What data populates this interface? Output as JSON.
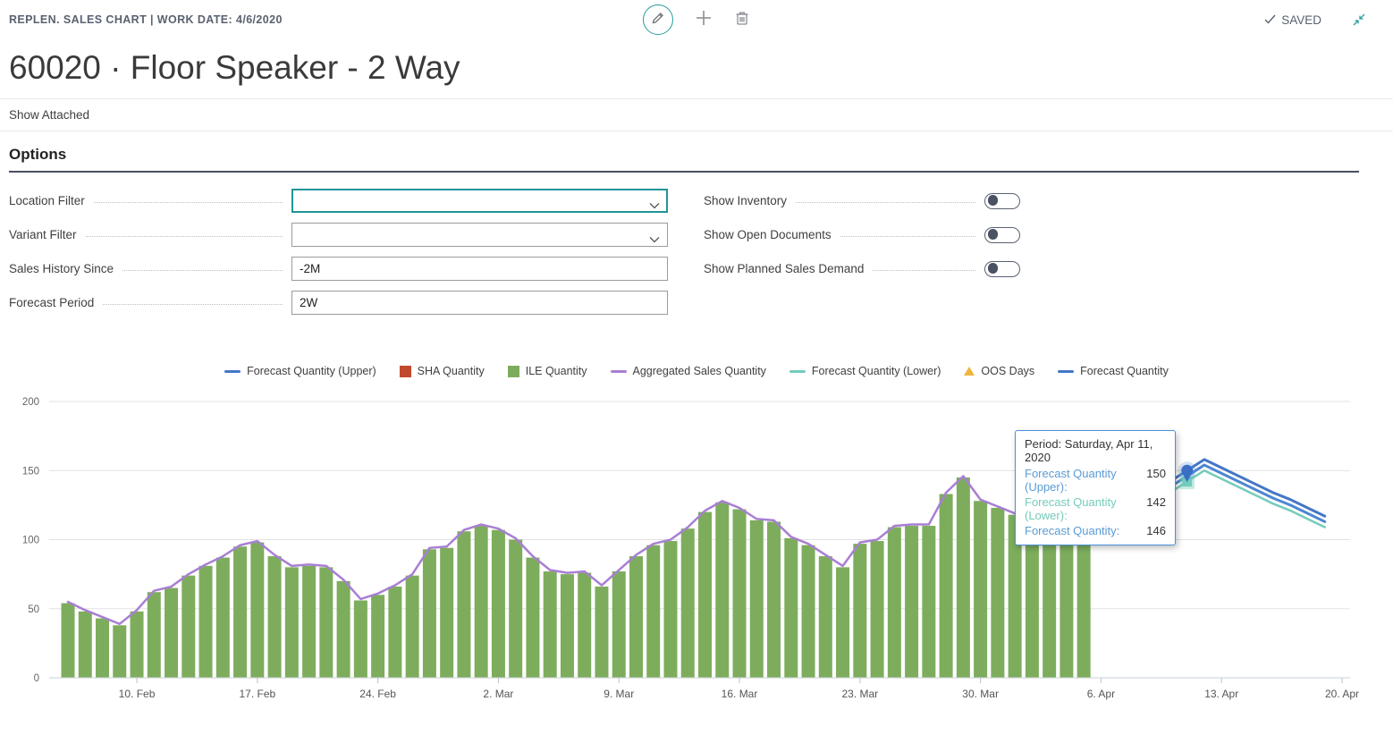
{
  "header": {
    "caption": "REPLEN. SALES CHART | WORK DATE: 4/6/2020",
    "title": "60020 · Floor Speaker - 2 Way",
    "saved_label": "SAVED",
    "accent_teal": "#2a9a9e"
  },
  "show_attached_label": "Show Attached",
  "options": {
    "heading": "Options",
    "fields": [
      {
        "label": "Location Filter",
        "value": "",
        "type": "combo",
        "focused": true
      },
      {
        "label": "Variant Filter",
        "value": "",
        "type": "combo",
        "focused": false
      },
      {
        "label": "Sales History Since",
        "value": "-2M",
        "type": "text",
        "focused": false
      },
      {
        "label": "Forecast Period",
        "value": "2W",
        "type": "text",
        "focused": false
      }
    ],
    "toggles": [
      {
        "label": "Show Inventory",
        "state": "off"
      },
      {
        "label": "Show Open Documents",
        "state": "off"
      },
      {
        "label": "Show Planned Sales Demand",
        "state": "off"
      }
    ]
  },
  "chart_data": {
    "type": "bar+line combo with forecast lines",
    "ylim": [
      0,
      200
    ],
    "yticks": [
      0,
      50,
      100,
      150,
      200
    ],
    "x_ticks": [
      {
        "label": "10. Feb",
        "day": 4
      },
      {
        "label": "17. Feb",
        "day": 11
      },
      {
        "label": "24. Feb",
        "day": 18
      },
      {
        "label": "2. Mar",
        "day": 25
      },
      {
        "label": "9. Mar",
        "day": 32
      },
      {
        "label": "16. Mar",
        "day": 39
      },
      {
        "label": "23. Mar",
        "day": 46
      },
      {
        "label": "30. Mar",
        "day": 53
      },
      {
        "label": "6. Apr",
        "day": 60
      },
      {
        "label": "13. Apr",
        "day": 67
      },
      {
        "label": "20. Apr",
        "day": 74
      }
    ],
    "bars": {
      "name": "ILE Quantity",
      "color": "#7dad5c",
      "start_date": "2020-02-06",
      "start_day": 0,
      "values": [
        54,
        48,
        43,
        38,
        48,
        62,
        65,
        74,
        81,
        87,
        95,
        98,
        88,
        80,
        81,
        80,
        70,
        56,
        60,
        66,
        74,
        93,
        94,
        106,
        110,
        107,
        100,
        87,
        77,
        75,
        76,
        66,
        77,
        88,
        96,
        99,
        108,
        120,
        127,
        122,
        114,
        113,
        101,
        96,
        88,
        80,
        97,
        99,
        109,
        110,
        110,
        133,
        145,
        128,
        123,
        118,
        112,
        106,
        106,
        98
      ]
    },
    "agg_line": {
      "name": "Aggregated Sales Quantity",
      "color": "#a87fd3",
      "start_day": 0,
      "values": [
        54,
        48,
        43,
        38,
        48,
        62,
        65,
        74,
        81,
        87,
        95,
        98,
        88,
        80,
        81,
        80,
        70,
        56,
        60,
        66,
        74,
        93,
        94,
        106,
        110,
        107,
        100,
        87,
        77,
        75,
        76,
        66,
        77,
        88,
        96,
        99,
        108,
        120,
        127,
        122,
        114,
        113,
        101,
        96,
        88,
        80,
        97,
        99,
        109,
        110,
        110,
        133,
        145,
        128,
        123,
        118,
        112,
        106,
        106,
        98
      ]
    },
    "forecast": {
      "start_date": "2020-04-06",
      "start_day": 60,
      "series": [
        {
          "name": "Forecast Quantity (Upper)",
          "color": "#4377c6",
          "width": 3,
          "values": [
            110,
            118,
            126,
            134,
            142,
            150,
            158,
            152,
            146,
            140,
            134,
            129,
            123,
            117
          ]
        },
        {
          "name": "Forecast Quantity",
          "color": "#4c87d2",
          "width": 3,
          "values": [
            106,
            114,
            122,
            130,
            138,
            146,
            154,
            148,
            142,
            136,
            130,
            125,
            119,
            113
          ]
        },
        {
          "name": "Forecast Quantity (Lower)",
          "color": "#74ccba",
          "width": 2.5,
          "values": [
            102,
            110,
            118,
            126,
            134,
            142,
            150,
            144,
            138,
            132,
            126,
            121,
            115,
            109
          ]
        }
      ]
    },
    "marker": {
      "date": "2020-04-11",
      "day": 65,
      "upper_value": 150,
      "lower_value": 142,
      "pin_color": "#3a6fc4",
      "square_color": "#74ccba"
    },
    "legend": [
      {
        "type": "line",
        "color": "#4377c6",
        "label": "Forecast Quantity (Upper)"
      },
      {
        "type": "square",
        "color": "#c1492f",
        "label": "SHA Quantity"
      },
      {
        "type": "square",
        "color": "#7dad5c",
        "label": "ILE Quantity"
      },
      {
        "type": "line",
        "color": "#a87fd3",
        "label": "Aggregated Sales Quantity"
      },
      {
        "type": "line",
        "color": "#74ccba",
        "label": "Forecast Quantity (Lower)"
      },
      {
        "type": "triangle",
        "color": "#f0b63e",
        "label": "OOS Days"
      },
      {
        "type": "line",
        "color": "#4377c6",
        "label": "Forecast Quantity"
      }
    ],
    "tooltip": {
      "period": "Period: Saturday, Apr 11, 2020",
      "rows": [
        {
          "label": "Forecast Quantity (Upper):",
          "value": "150",
          "color": "#5b9bd5"
        },
        {
          "label": "Forecast Quantity (Lower):",
          "value": "142",
          "color": "#74ccba"
        },
        {
          "label": "Forecast Quantity:",
          "value": "146",
          "color": "#5b9bd5"
        }
      ]
    },
    "grid": true,
    "legend_position": "top-center"
  }
}
